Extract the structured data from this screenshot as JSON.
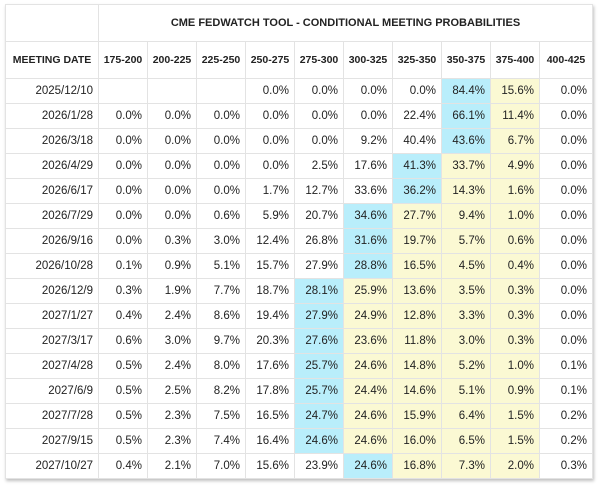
{
  "title": "CME FEDWATCH TOOL - CONDITIONAL MEETING PROBABILITIES",
  "first_column_header": "MEETING DATE",
  "columns": [
    "175-200",
    "200-225",
    "225-250",
    "250-275",
    "275-300",
    "300-325",
    "325-350",
    "350-375",
    "375-400",
    "400-425"
  ],
  "current_range": "375-400",
  "colors": {
    "max": "#b9eefb",
    "band": "#fbf9d3"
  },
  "rows": [
    {
      "date": "2025/12/10",
      "values": [
        "",
        "",
        "",
        "0.0%",
        "0.0%",
        "0.0%",
        "0.0%",
        "84.4%",
        "15.6%",
        "0.0%"
      ],
      "max_col": 7
    },
    {
      "date": "2026/1/28",
      "values": [
        "0.0%",
        "0.0%",
        "0.0%",
        "0.0%",
        "0.0%",
        "0.0%",
        "22.4%",
        "66.1%",
        "11.4%",
        "0.0%"
      ],
      "max_col": 7
    },
    {
      "date": "2026/3/18",
      "values": [
        "0.0%",
        "0.0%",
        "0.0%",
        "0.0%",
        "0.0%",
        "9.2%",
        "40.4%",
        "43.6%",
        "6.7%",
        "0.0%"
      ],
      "max_col": 7
    },
    {
      "date": "2026/4/29",
      "values": [
        "0.0%",
        "0.0%",
        "0.0%",
        "0.0%",
        "2.5%",
        "17.6%",
        "41.3%",
        "33.7%",
        "4.9%",
        "0.0%"
      ],
      "max_col": 6
    },
    {
      "date": "2026/6/17",
      "values": [
        "0.0%",
        "0.0%",
        "0.0%",
        "1.7%",
        "12.7%",
        "33.6%",
        "36.2%",
        "14.3%",
        "1.6%",
        "0.0%"
      ],
      "max_col": 6
    },
    {
      "date": "2026/7/29",
      "values": [
        "0.0%",
        "0.0%",
        "0.6%",
        "5.9%",
        "20.7%",
        "34.6%",
        "27.7%",
        "9.4%",
        "1.0%",
        "0.0%"
      ],
      "max_col": 5
    },
    {
      "date": "2026/9/16",
      "values": [
        "0.0%",
        "0.3%",
        "3.0%",
        "12.4%",
        "26.8%",
        "31.6%",
        "19.7%",
        "5.7%",
        "0.6%",
        "0.0%"
      ],
      "max_col": 5
    },
    {
      "date": "2026/10/28",
      "values": [
        "0.1%",
        "0.9%",
        "5.1%",
        "15.7%",
        "27.9%",
        "28.8%",
        "16.5%",
        "4.5%",
        "0.4%",
        "0.0%"
      ],
      "max_col": 5
    },
    {
      "date": "2026/12/9",
      "values": [
        "0.3%",
        "1.9%",
        "7.7%",
        "18.7%",
        "28.1%",
        "25.9%",
        "13.6%",
        "3.5%",
        "0.3%",
        "0.0%"
      ],
      "max_col": 4
    },
    {
      "date": "2027/1/27",
      "values": [
        "0.4%",
        "2.4%",
        "8.6%",
        "19.4%",
        "27.9%",
        "24.9%",
        "12.8%",
        "3.3%",
        "0.3%",
        "0.0%"
      ],
      "max_col": 4
    },
    {
      "date": "2027/3/17",
      "values": [
        "0.6%",
        "3.0%",
        "9.7%",
        "20.3%",
        "27.6%",
        "23.6%",
        "11.8%",
        "3.0%",
        "0.3%",
        "0.0%"
      ],
      "max_col": 4
    },
    {
      "date": "2027/4/28",
      "values": [
        "0.5%",
        "2.4%",
        "8.0%",
        "17.6%",
        "25.7%",
        "24.6%",
        "14.8%",
        "5.2%",
        "1.0%",
        "0.1%"
      ],
      "max_col": 4
    },
    {
      "date": "2027/6/9",
      "values": [
        "0.5%",
        "2.5%",
        "8.2%",
        "17.8%",
        "25.7%",
        "24.4%",
        "14.6%",
        "5.1%",
        "0.9%",
        "0.1%"
      ],
      "max_col": 4
    },
    {
      "date": "2027/7/28",
      "values": [
        "0.5%",
        "2.3%",
        "7.5%",
        "16.5%",
        "24.7%",
        "24.6%",
        "15.9%",
        "6.4%",
        "1.5%",
        "0.2%"
      ],
      "max_col": 4
    },
    {
      "date": "2027/9/15",
      "values": [
        "0.5%",
        "2.3%",
        "7.4%",
        "16.4%",
        "24.6%",
        "24.6%",
        "16.0%",
        "6.5%",
        "1.5%",
        "0.2%"
      ],
      "max_col": 4
    },
    {
      "date": "2027/10/27",
      "values": [
        "0.4%",
        "2.1%",
        "7.0%",
        "15.6%",
        "23.9%",
        "24.6%",
        "16.8%",
        "7.3%",
        "2.0%",
        "0.3%"
      ],
      "max_col": 5
    }
  ]
}
